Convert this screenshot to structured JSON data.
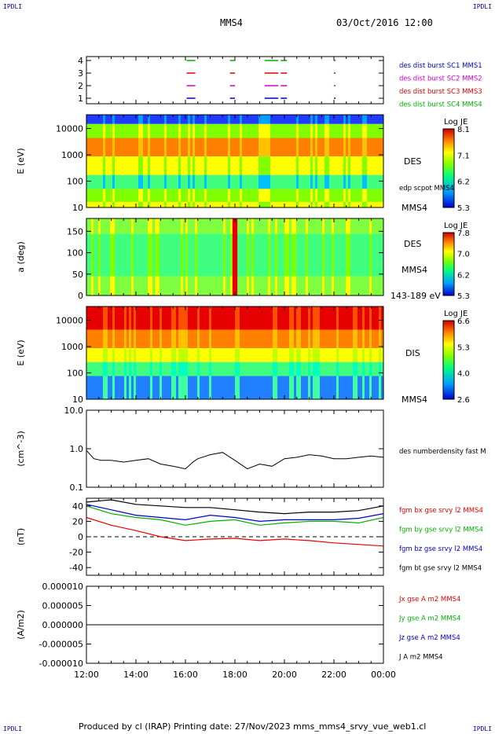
{
  "corners": {
    "tl": "IPDLI",
    "tr": "IPDLI",
    "bl": "IPDLI",
    "br": "IPDLI"
  },
  "header": {
    "spacecraft": "MMS4",
    "datetime": "03/Oct/2016 12:00"
  },
  "footer": {
    "text": "Produced by cl (IRAP)   Printing date: 27/Nov/2023   mms_mms4_srvy_vue_web1.cl"
  },
  "colors": {
    "red": "#e60000",
    "magenta": "#cc00cc",
    "blue": "#0000cc",
    "green": "#00b000",
    "black": "#000000"
  },
  "chart_data": [
    {
      "type": "scatter",
      "panel": "burst-availability",
      "yticks": [
        "1",
        "2",
        "3",
        "4"
      ],
      "legend": [
        {
          "name": "des dist burst SC1 MMS1",
          "color": "#0000cc",
          "level": 1
        },
        {
          "name": "des dist burst SC2 MMS2",
          "color": "#cc00cc",
          "level": 2
        },
        {
          "name": "des dist burst SC3 MMS3",
          "color": "#e60000",
          "level": 3
        },
        {
          "name": "des dist burst SC4 MMS4",
          "color": "#00b000",
          "level": 4
        }
      ],
      "intervals_hours": [
        [
          16.05,
          16.4
        ],
        [
          17.8,
          18.0
        ],
        [
          19.2,
          19.75
        ],
        [
          19.85,
          20.1
        ],
        [
          22.0,
          22.05
        ]
      ]
    },
    {
      "type": "heatmap",
      "panel": "des-energy",
      "ylabel": "E (eV)",
      "yticks": [
        "10",
        "100",
        "1000",
        "10000"
      ],
      "log": true,
      "label": "DES",
      "overlay_label": "edp scpot MMS4",
      "mms_label": "MMS4",
      "colorbar": {
        "title": "Log JE",
        "ticks": [
          "8.1",
          "7.1",
          "6.2",
          "5.3"
        ]
      }
    },
    {
      "type": "heatmap",
      "panel": "des-pitch-angle",
      "ylabel": "a (deg)",
      "yticks": [
        "0",
        "50",
        "100",
        "150"
      ],
      "label": "DES",
      "mms_label": "MMS4",
      "energy_band": "143-189 eV",
      "colorbar": {
        "title": "Log JE",
        "ticks": [
          "7.8",
          "7.0",
          "6.2",
          "5.3"
        ]
      }
    },
    {
      "type": "heatmap",
      "panel": "dis-energy",
      "ylabel": "E (eV)",
      "yticks": [
        "10",
        "100",
        "1000",
        "10000"
      ],
      "log": true,
      "label": "DIS",
      "mms_label": "MMS4",
      "colorbar": {
        "title": "Log JE",
        "ticks": [
          "6.6",
          "5.3",
          "4.0",
          "2.6"
        ]
      }
    },
    {
      "type": "line",
      "panel": "density",
      "ylabel": "(cm^-3)",
      "yticks": [
        "0.1",
        "1.0",
        "10.0"
      ],
      "log": true,
      "ylim": [
        0.1,
        10
      ],
      "series": [
        {
          "name": "des numberdensity fast M",
          "color": "#000000",
          "x": [
            12,
            12.3,
            12.6,
            13,
            13.5,
            14,
            14.5,
            15,
            15.5,
            16,
            16.3,
            16.5,
            17,
            17.5,
            18,
            18.5,
            19,
            19.5,
            20,
            20.5,
            21,
            21.5,
            22,
            22.5,
            23,
            23.5,
            24
          ],
          "y": [
            0.9,
            0.55,
            0.5,
            0.5,
            0.45,
            0.5,
            0.55,
            0.4,
            0.35,
            0.3,
            0.45,
            0.55,
            0.7,
            0.8,
            0.5,
            0.3,
            0.4,
            0.35,
            0.55,
            0.6,
            0.7,
            0.65,
            0.55,
            0.55,
            0.6,
            0.65,
            0.6
          ]
        }
      ]
    },
    {
      "type": "line",
      "panel": "magnetic-field",
      "ylabel": "(nT)",
      "yticks": [
        "-40",
        "-20",
        "0",
        "20",
        "40"
      ],
      "ylim": [
        -50,
        50
      ],
      "series": [
        {
          "name": "fgm bx gse srvy l2 MMS4",
          "color": "#e60000",
          "x": [
            12,
            13,
            14,
            15,
            16,
            17,
            18,
            19,
            20,
            21,
            22,
            23,
            24
          ],
          "y": [
            25,
            15,
            8,
            0,
            -5,
            -3,
            -2,
            -5,
            -3,
            -5,
            -8,
            -10,
            -12
          ]
        },
        {
          "name": "fgm by gse srvy l2 MMS4",
          "color": "#00b000",
          "x": [
            12,
            13,
            14,
            15,
            16,
            17,
            18,
            19,
            20,
            21,
            22,
            23,
            24
          ],
          "y": [
            40,
            30,
            25,
            22,
            15,
            20,
            22,
            15,
            18,
            20,
            20,
            18,
            25
          ]
        },
        {
          "name": "fgm bz gse srvy l2 MMS4",
          "color": "#0000cc",
          "x": [
            12,
            13,
            14,
            15,
            16,
            17,
            18,
            19,
            20,
            21,
            22,
            23,
            24
          ],
          "y": [
            42,
            35,
            28,
            25,
            22,
            28,
            25,
            20,
            22,
            22,
            22,
            24,
            30
          ]
        },
        {
          "name": "fgm bt gse srvy l2 MMS4",
          "color": "#000000",
          "x": [
            12,
            13,
            14,
            15,
            16,
            17,
            18,
            19,
            20,
            21,
            22,
            23,
            24
          ],
          "y": [
            45,
            48,
            42,
            40,
            38,
            38,
            35,
            32,
            30,
            32,
            32,
            34,
            40
          ]
        }
      ]
    },
    {
      "type": "line",
      "panel": "current-density",
      "ylabel": "(A/m2)",
      "yticks": [
        "-0.000010",
        "-0.000005",
        "0.000000",
        "0.000005",
        "0.000010"
      ],
      "ylim": [
        -1e-05,
        1e-05
      ],
      "xticks": [
        "12:00",
        "14:00",
        "16:00",
        "18:00",
        "20:00",
        "22:00",
        "00:00"
      ],
      "series": [
        {
          "name": "Jx gse A m2 MMS4",
          "color": "#e60000"
        },
        {
          "name": "Jy gse A m2 MMS4",
          "color": "#00b000"
        },
        {
          "name": "Jz gse A m2 MMS4",
          "color": "#0000cc"
        },
        {
          "name": "J A m2 MMS4",
          "color": "#000000"
        }
      ],
      "values_all": 0
    }
  ]
}
